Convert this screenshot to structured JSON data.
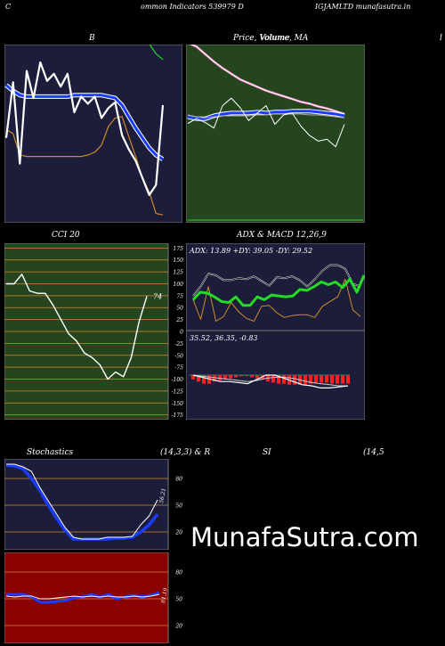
{
  "header": {
    "left": "C",
    "center": "ommon  Indicators 539979 D",
    "right": "IGJAMLTD munafasutra.in"
  },
  "colors": {
    "navy": "#1c1d3a",
    "green_panel": "#25451f",
    "red_panel": "#8b0000",
    "orange": "#d08a2a",
    "blue": "#1a3cff",
    "lime": "#22dd22",
    "pink": "#ff88cc"
  },
  "bands": {
    "title": "B",
    "upper": [
      71,
      66,
      63,
      66,
      67,
      66,
      65,
      64,
      64,
      64,
      65,
      66,
      67,
      68,
      70,
      72,
      73,
      72,
      70,
      69,
      66,
      63,
      56,
      52
    ],
    "middle": [
      34,
      30,
      27,
      26,
      26,
      26,
      26,
      26,
      26,
      26,
      27,
      27,
      27,
      27,
      27,
      26,
      25,
      20,
      12,
      4,
      -3,
      -10,
      -15,
      -18
    ],
    "lower": [
      3,
      0,
      -15,
      -16,
      -16,
      -16,
      -16,
      -16,
      -16,
      -16,
      -16,
      -16,
      -15,
      -13,
      -8,
      5,
      11,
      12,
      -2,
      -16,
      -31,
      -41,
      -56,
      -57
    ],
    "price": [
      -3,
      36,
      -21,
      44,
      25,
      50,
      37,
      42,
      33,
      42,
      15,
      26,
      21,
      26,
      11,
      18,
      22,
      -1,
      -11,
      -19,
      -31,
      -43,
      -36,
      20
    ]
  },
  "price_ma": {
    "title": "Price,  Volume,  MA",
    "volume_label": "Volume",
    "price_line": [
      97,
      93,
      85,
      77,
      70,
      64,
      58,
      54,
      50,
      46,
      43,
      40,
      37,
      34,
      32,
      29,
      27,
      24,
      21
    ],
    "ma_fast": [
      18,
      16,
      16,
      19,
      21,
      22,
      22,
      22,
      23,
      22,
      23,
      23,
      24,
      24,
      24,
      23,
      22,
      21,
      19
    ],
    "ma_slow": [
      20,
      18,
      17,
      18,
      19,
      19,
      19,
      19,
      20,
      20,
      21,
      21,
      21,
      21,
      20,
      20,
      19,
      18,
      17
    ],
    "close": [
      11,
      16,
      12,
      6,
      30,
      38,
      28,
      14,
      22,
      30,
      10,
      20,
      22,
      8,
      -2,
      -8,
      -6,
      -14,
      10
    ]
  },
  "cci": {
    "title": "CCI 20",
    "value_label": "74",
    "ticks": [
      "175",
      "150",
      "125",
      "100",
      "75",
      "50",
      "25",
      "0",
      "-25",
      "-50",
      "-75",
      "-100",
      "-125",
      "-150",
      "-175"
    ],
    "ylim": [
      -185,
      185
    ],
    "values": [
      100,
      100,
      120,
      85,
      80,
      80,
      55,
      25,
      -5,
      -20,
      -45,
      -55,
      -70,
      -100,
      -85,
      -95,
      -55,
      20,
      74
    ]
  },
  "adx": {
    "title": "ADX  & MACD 12,26,9",
    "stats": "ADX: 13.89  +DY: 39.05 -DY: 29.52",
    "adx_line": [
      33,
      41,
      40,
      36,
      31,
      30,
      36,
      27,
      27,
      36,
      33,
      38,
      37,
      36,
      37,
      44,
      43,
      47,
      52,
      49,
      52,
      46,
      55,
      41,
      59
    ],
    "plus_di": [
      37,
      47,
      61,
      59,
      54,
      54,
      56,
      55,
      58,
      53,
      48,
      57,
      56,
      58,
      54,
      47,
      55,
      64,
      70,
      70,
      66,
      50,
      47
    ],
    "minus_di": [
      33,
      12,
      47,
      10,
      15,
      30,
      20,
      13,
      10,
      26,
      27,
      19,
      14,
      16,
      17,
      17,
      14,
      26,
      31,
      36,
      55,
      22,
      15
    ]
  },
  "macd": {
    "stats": "35.52,  36.35,  -0.83",
    "macd_line": [
      0,
      -2,
      -4,
      -6,
      -6,
      -7,
      -8,
      -4,
      0,
      0,
      -3,
      -6,
      -9,
      -10,
      -12,
      -12,
      -11,
      -10
    ],
    "signal_line": [
      0,
      -1,
      -2,
      -3,
      -4,
      -5,
      -6,
      -5,
      -3,
      -2,
      -2,
      -3,
      -5,
      -7,
      -8,
      -9,
      -10,
      -10
    ],
    "histogram": [
      -4,
      -6,
      -8,
      -8,
      -6,
      -5,
      -4,
      -3,
      -2,
      -1,
      -1,
      -2,
      -3,
      -4,
      -6,
      -7,
      -8,
      -8,
      -9,
      -9,
      -9,
      -9,
      -8,
      -7,
      -7,
      -7,
      -8,
      -8,
      -8,
      -8
    ]
  },
  "stochastics": {
    "title": "Stochastics",
    "params": "(14,3,3) & R",
    "value_label": "56.21",
    "ticks": [
      "80",
      "50",
      "20"
    ],
    "k_line": [
      96,
      96,
      93,
      88,
      70,
      55,
      40,
      25,
      14,
      12,
      12,
      12,
      14,
      14,
      14,
      15,
      28,
      38,
      56
    ],
    "d_line": [
      95,
      94,
      91,
      80,
      67,
      50,
      35,
      22,
      12,
      12,
      12,
      12,
      12,
      13,
      13,
      14,
      20,
      28,
      40
    ]
  },
  "rsi": {
    "title": "SI",
    "params": "(14,5",
    "value_label": "61.19",
    "ticks": [
      "80",
      "50",
      "20"
    ],
    "line": [
      55,
      55,
      55,
      52,
      46,
      46,
      47,
      48,
      51,
      52,
      55,
      52,
      55,
      50,
      52,
      54,
      52,
      54,
      57
    ],
    "thin_line": [
      53,
      52,
      53,
      53,
      50,
      50,
      51,
      52,
      53,
      52,
      53,
      52,
      53,
      52,
      52,
      53,
      52,
      53,
      55
    ]
  },
  "watermark": "MunafaSutra.com"
}
